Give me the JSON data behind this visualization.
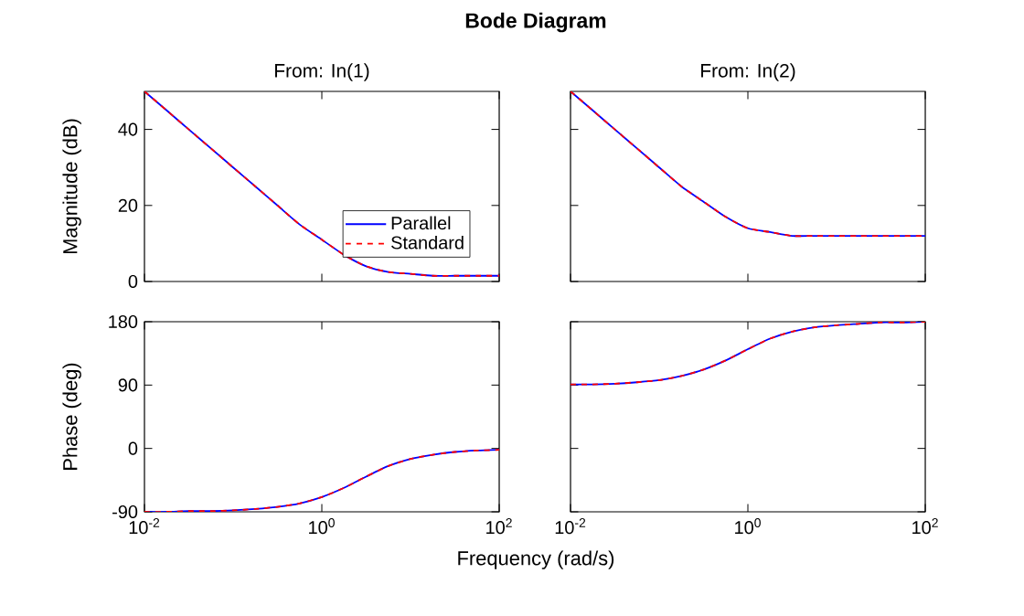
{
  "chart_data": [
    {
      "type": "line",
      "title": "Bode Diagram",
      "subtitle": "From: In(1)",
      "ylabel": "Magnitude (dB)",
      "log": "x",
      "legend": "bottom right",
      "tick_labels": "y",
      "x": [
        0.01,
        0.0178,
        0.0316,
        0.0562,
        0.1,
        0.178,
        0.316,
        0.562,
        1,
        1.78,
        3.16,
        5.62,
        10,
        17.8,
        31.6,
        56.2,
        100
      ],
      "xlim": [
        0.01,
        100
      ],
      "xticks": [
        {
          "value": 0.01,
          "label": null
        },
        {
          "value": 1,
          "label": null
        },
        {
          "value": 100,
          "label": null
        }
      ],
      "ylim": [
        0,
        50
      ],
      "yticks": [
        0,
        20,
        40
      ],
      "series": [
        {
          "name": "Parallel",
          "color": "#0000ff",
          "line_style": "solid",
          "values": [
            50,
            45,
            40,
            35,
            30,
            25,
            20,
            15,
            11,
            7,
            4,
            2.5,
            2,
            1.5,
            1.5,
            1.5,
            1.5
          ]
        },
        {
          "name": "Standard",
          "color": "#ff0000",
          "line_style": "dashed",
          "values": [
            50,
            45,
            40,
            35,
            30,
            25,
            20,
            15,
            11,
            7,
            4,
            2.5,
            2,
            1.5,
            1.5,
            1.5,
            1.5
          ]
        }
      ]
    },
    {
      "type": "line",
      "subtitle": "From: In(2)",
      "log": "x",
      "tick_labels": false,
      "x": [
        0.01,
        0.0178,
        0.0316,
        0.0562,
        0.1,
        0.178,
        0.316,
        0.562,
        1,
        1.78,
        3.16,
        5.62,
        10,
        17.8,
        31.6,
        56.2,
        100
      ],
      "xlim": [
        0.01,
        100
      ],
      "xticks": [
        {
          "value": 0.01,
          "label": null
        },
        {
          "value": 1,
          "label": null
        },
        {
          "value": 100,
          "label": null
        }
      ],
      "ylim": [
        0,
        50
      ],
      "yticks": [
        0,
        20,
        40
      ],
      "series": [
        {
          "color": "#0000ff",
          "line_style": "solid",
          "values": [
            50,
            45,
            40,
            35,
            30,
            25,
            21,
            17,
            14,
            13,
            12,
            12,
            12,
            12,
            12,
            12,
            12
          ]
        },
        {
          "color": "#ff0000",
          "line_style": "dashed",
          "values": [
            50,
            45,
            40,
            35,
            30,
            25,
            21,
            17,
            14,
            13,
            12,
            12,
            12,
            12,
            12,
            12,
            12
          ]
        }
      ]
    },
    {
      "type": "line",
      "ylabel": "Phase (deg)",
      "xlabel": "Frequency (rad/s)",
      "log": "x",
      "x": [
        0.01,
        0.0178,
        0.0316,
        0.0562,
        0.1,
        0.178,
        0.316,
        0.562,
        1,
        1.78,
        3.16,
        5.62,
        10,
        17.8,
        31.6,
        56.2,
        100
      ],
      "xlim": [
        0.01,
        100
      ],
      "xticks": [
        {
          "value": 0.01,
          "label": "10$^{-2}$"
        },
        {
          "value": 1,
          "label": "10$^{0}$"
        },
        {
          "value": 100,
          "label": "10$^{2}$"
        }
      ],
      "ylim": [
        -90,
        180
      ],
      "yticks": [
        -90,
        0,
        90,
        180
      ],
      "series": [
        {
          "color": "#0000ff",
          "line_style": "solid",
          "values": [
            -90,
            -90,
            -89,
            -89,
            -88,
            -86,
            -83,
            -78,
            -69,
            -56,
            -40,
            -25,
            -15,
            -9,
            -5,
            -3,
            -2
          ]
        },
        {
          "color": "#ff0000",
          "line_style": "dashed",
          "values": [
            -90,
            -90,
            -89,
            -89,
            -88,
            -86,
            -83,
            -78,
            -69,
            -56,
            -40,
            -25,
            -15,
            -9,
            -5,
            -3,
            -2
          ]
        }
      ]
    },
    {
      "type": "line",
      "log": "x",
      "tick_labels": "x",
      "x": [
        0.01,
        0.0178,
        0.0316,
        0.0562,
        0.1,
        0.178,
        0.316,
        0.562,
        1,
        1.78,
        3.16,
        5.62,
        10,
        17.8,
        31.6,
        56.2,
        100
      ],
      "xlim": [
        0.01,
        100
      ],
      "xticks": [
        {
          "value": 0.01,
          "label": "10$^{-2}$"
        },
        {
          "value": 1,
          "label": "10$^{0}$"
        },
        {
          "value": 100,
          "label": "10$^{2}$"
        }
      ],
      "ylim": [
        -90,
        180
      ],
      "yticks": [
        -90,
        0,
        90,
        180
      ],
      "series": [
        {
          "color": "#0000ff",
          "line_style": "solid",
          "values": [
            91,
            91,
            92,
            94,
            97,
            103,
            112,
            125,
            141,
            156,
            166,
            172,
            175,
            177,
            179,
            179,
            180
          ]
        },
        {
          "color": "#ff0000",
          "line_style": "dashed",
          "values": [
            91,
            91,
            92,
            94,
            97,
            103,
            112,
            125,
            141,
            156,
            166,
            172,
            175,
            177,
            179,
            179,
            180
          ]
        }
      ]
    }
  ]
}
